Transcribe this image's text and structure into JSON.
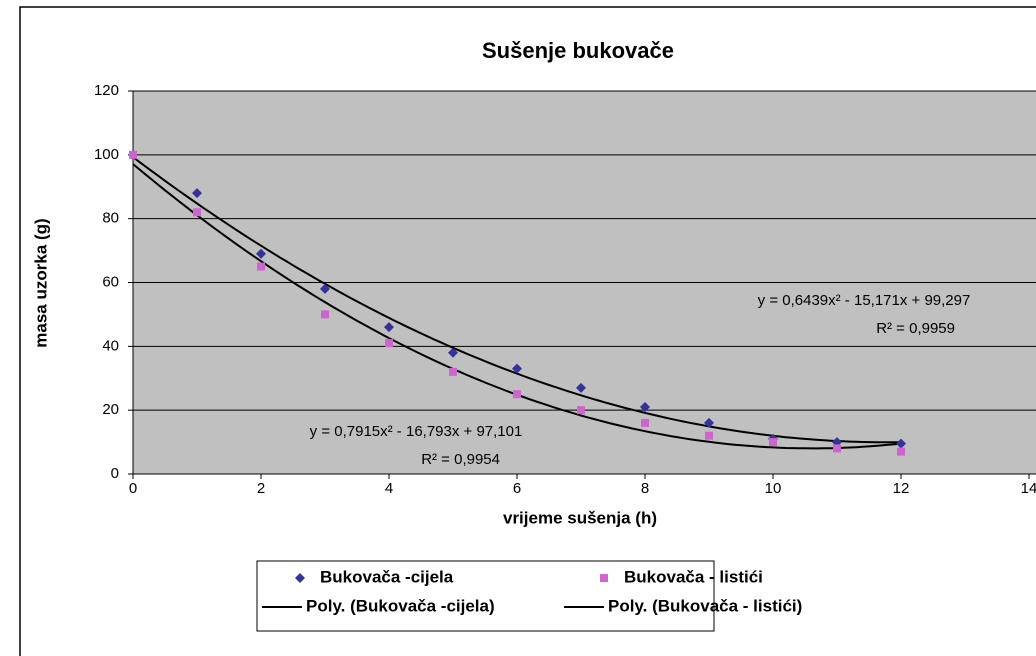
{
  "chart_data": {
    "type": "scatter",
    "title": "Sušenje bukovače",
    "xlabel": "vrijeme sušenja (h)",
    "ylabel": "masa uzorka (g)",
    "x": [
      0,
      1,
      2,
      3,
      4,
      5,
      6,
      7,
      8,
      9,
      10,
      11,
      12
    ],
    "series": [
      {
        "name": "Bukovača -cijela",
        "color": "#333399",
        "marker": "diamond",
        "values": [
          100,
          88,
          69,
          58,
          46,
          38,
          33,
          27,
          21,
          16,
          11,
          10,
          9.5
        ]
      },
      {
        "name": "Bukovača - listići",
        "color": "#cc66cc",
        "marker": "square",
        "values": [
          100,
          82,
          65,
          50,
          41,
          32,
          25,
          20,
          16,
          12,
          10,
          8,
          7
        ]
      }
    ],
    "trendlines": [
      {
        "name": "Poly. (Bukovača -cijela)",
        "color": "#000000",
        "series": 0,
        "coefficients": [
          0.6439,
          -15.171,
          99.297
        ],
        "equation": "y = 0,6439x² - 15,171x + 99,297",
        "r2": "R² = 0,9959"
      },
      {
        "name": "Poly. (Bukovača - listići)",
        "color": "#000000",
        "series": 1,
        "coefficients": [
          0.7915,
          -16.793,
          97.101
        ],
        "equation": "y = 0,7915x² - 16,793x + 97,101",
        "r2": "R² = 0,9954"
      }
    ],
    "xlim": [
      0,
      14
    ],
    "xticks": [
      0,
      2,
      4,
      6,
      8,
      10,
      12,
      14
    ],
    "ylim": [
      0,
      120
    ],
    "yticks": [
      0,
      20,
      40,
      60,
      80,
      100,
      120
    ],
    "grid": true,
    "legend": "bottom"
  }
}
